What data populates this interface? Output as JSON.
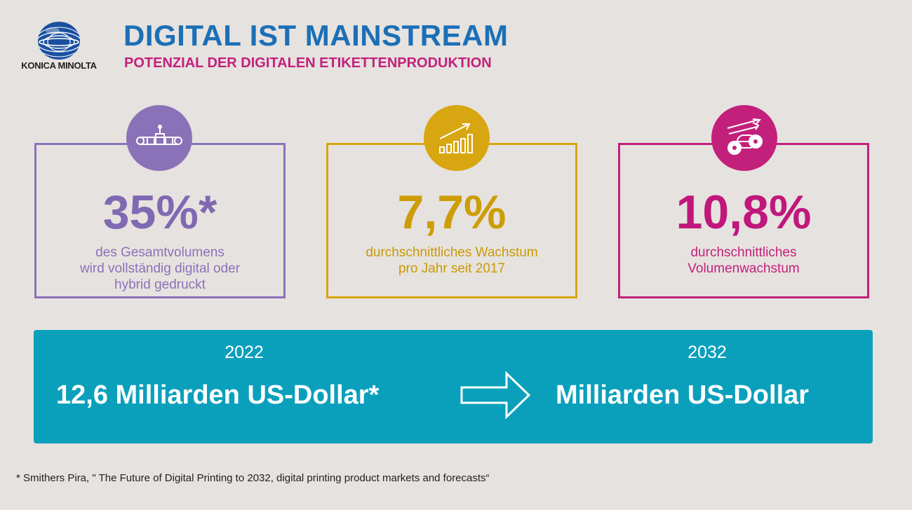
{
  "brand": {
    "logo_text": "KONICA MINOLTA",
    "logo_icon": "konica-minolta-globe-icon",
    "color": "#1b4fa0"
  },
  "header": {
    "title": "DIGITAL IST MAINSTREAM",
    "subtitle": "POTENZIAL DER DIGITALEN ETIKETTENPRODUKTION"
  },
  "cards": [
    {
      "value": "35%*",
      "description": "des Gesamtvolumens\nwird vollständig digital oder\nhybrid gedruckt",
      "icon": "printing-press-icon",
      "color": "#8a72b8"
    },
    {
      "value": "7,7%",
      "description": "durchschnittliches Wachstum\npro Jahr seit 2017",
      "icon": "growth-chart-icon",
      "color": "#d8a611"
    },
    {
      "value": "10,8%",
      "description": "durchschnittliches\nVolumenwachstum",
      "icon": "label-rolls-icon",
      "color": "#c3207c"
    }
  ],
  "banner": {
    "from_year": "2022",
    "from_amount": "12,6 Milliarden US-Dollar*",
    "to_year": "2032",
    "to_amount": "Milliarden US-Dollar",
    "arrow_icon": "arrow-right-icon",
    "color": "#0aa0bc"
  },
  "footnote": "* Smithers Pira, \" The Future of Digital Printing to 2032, digital printing product markets and forecasts“"
}
